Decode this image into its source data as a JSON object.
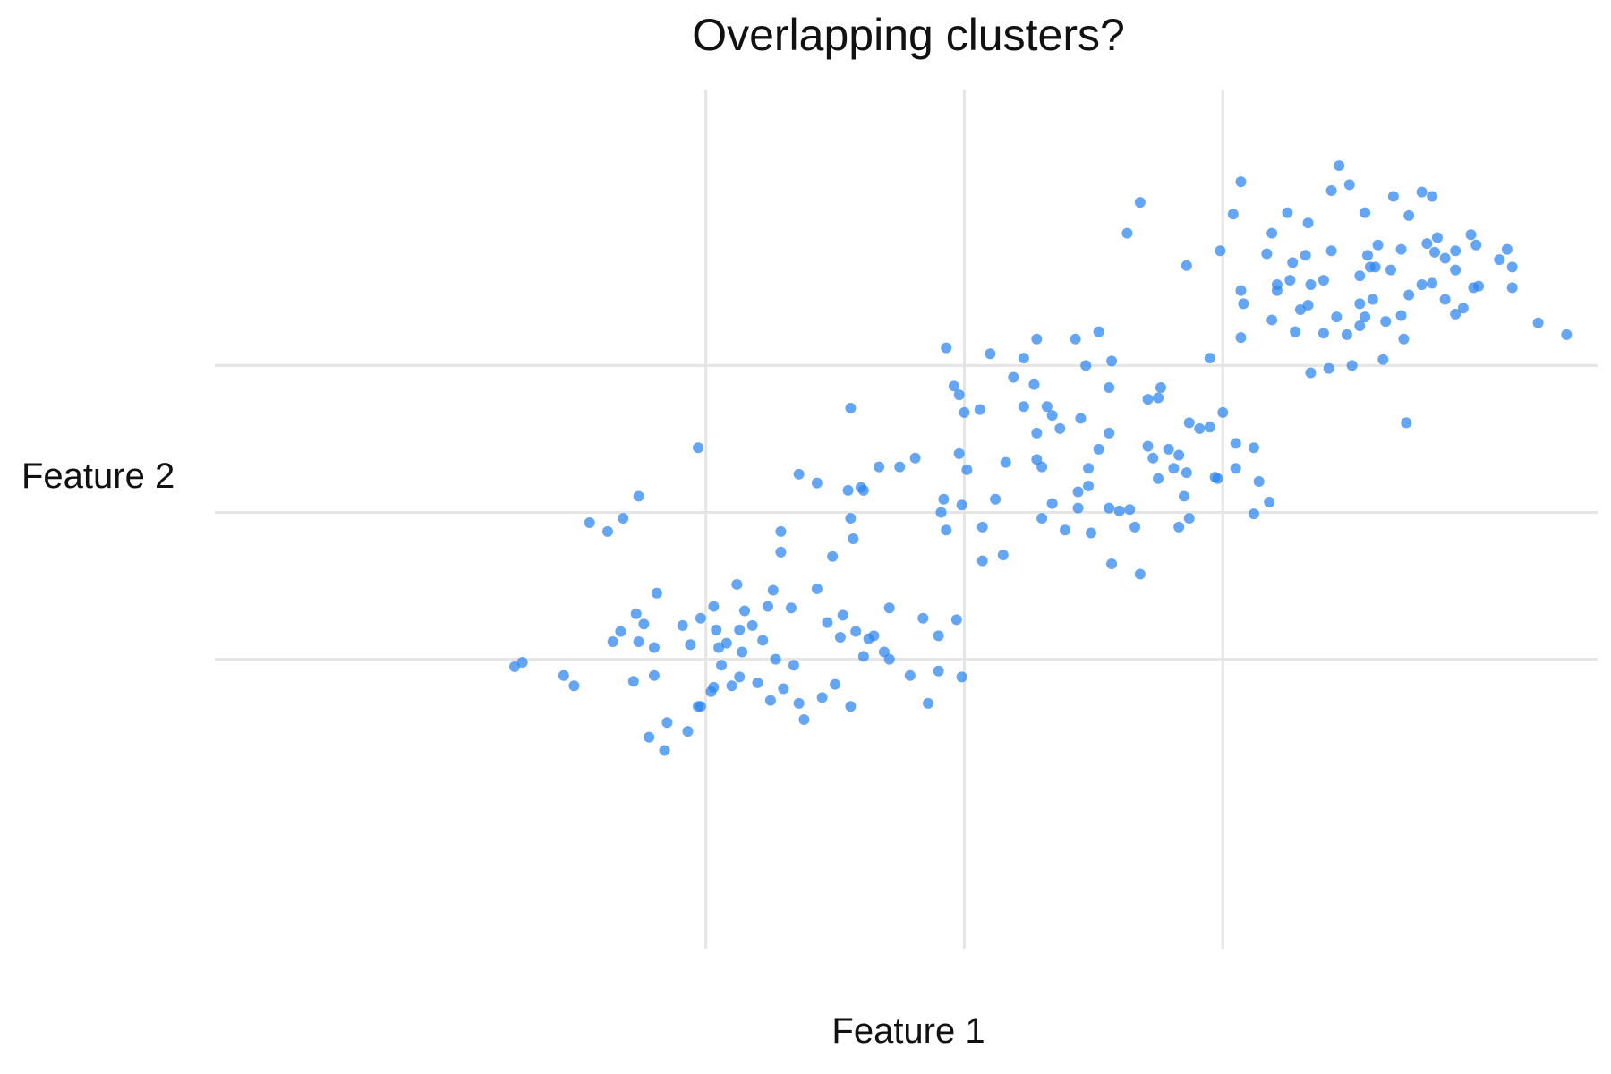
{
  "chart_data": {
    "type": "scatter",
    "title": "Overlapping clusters?",
    "xlabel": "Feature 1",
    "ylabel": "Feature 2",
    "xlim": [
      -1.9,
      3.45
    ],
    "ylim": [
      -2.0,
      4.0
    ],
    "grid": true,
    "x_gridlines": [
      0,
      1,
      2
    ],
    "y_gridlines": [
      0,
      1,
      2
    ],
    "legend": "none",
    "color": "#2a84f0",
    "points": [
      [
        -0.74,
        -0.05
      ],
      [
        -0.71,
        -0.02
      ],
      [
        -0.55,
        -0.11
      ],
      [
        -0.51,
        -0.18
      ],
      [
        -0.28,
        -0.15
      ],
      [
        -0.2,
        0.08
      ],
      [
        -0.2,
        -0.11
      ],
      [
        -0.15,
        -0.43
      ],
      [
        -0.07,
        -0.49
      ],
      [
        -0.02,
        -0.32
      ],
      [
        0.02,
        -0.22
      ],
      [
        0.03,
        -0.19
      ],
      [
        0.06,
        -0.04
      ],
      [
        0.1,
        -0.18
      ],
      [
        0.13,
        -0.12
      ],
      [
        0.2,
        -0.16
      ],
      [
        0.25,
        -0.28
      ],
      [
        0.3,
        -0.2
      ],
      [
        -0.19,
        0.45
      ],
      [
        -0.09,
        0.23
      ],
      [
        -0.26,
        0.12
      ],
      [
        -0.33,
        0.19
      ],
      [
        -0.36,
        0.12
      ],
      [
        -0.27,
        0.31
      ],
      [
        -0.24,
        0.24
      ],
      [
        -0.22,
        -0.53
      ],
      [
        -0.16,
        -0.62
      ],
      [
        -0.03,
        -0.32
      ],
      [
        0.04,
        0.2
      ],
      [
        0.05,
        0.08
      ],
      [
        0.08,
        0.11
      ],
      [
        0.13,
        0.2
      ],
      [
        0.14,
        0.05
      ],
      [
        0.18,
        0.23
      ],
      [
        0.22,
        0.13
      ],
      [
        0.27,
        0.0
      ],
      [
        0.34,
        -0.04
      ],
      [
        0.36,
        -0.3
      ],
      [
        0.38,
        -0.41
      ],
      [
        0.45,
        -0.26
      ],
      [
        0.5,
        -0.17
      ],
      [
        0.52,
        0.15
      ],
      [
        0.56,
        -0.32
      ],
      [
        0.61,
        0.02
      ],
      [
        0.63,
        0.14
      ],
      [
        0.69,
        0.05
      ],
      [
        0.71,
        0.0
      ],
      [
        0.79,
        -0.11
      ],
      [
        0.86,
        -0.3
      ],
      [
        0.9,
        -0.08
      ],
      [
        0.97,
        0.27
      ],
      [
        0.99,
        -0.12
      ],
      [
        -0.02,
        0.28
      ],
      [
        0.03,
        0.36
      ],
      [
        -0.06,
        0.1
      ],
      [
        0.15,
        0.33
      ],
      [
        0.24,
        0.36
      ],
      [
        0.12,
        0.51
      ],
      [
        0.26,
        0.47
      ],
      [
        0.33,
        0.35
      ],
      [
        0.43,
        0.48
      ],
      [
        0.47,
        0.25
      ],
      [
        0.53,
        0.3
      ],
      [
        0.58,
        0.19
      ],
      [
        0.65,
        0.16
      ],
      [
        0.71,
        0.35
      ],
      [
        0.84,
        0.28
      ],
      [
        0.9,
        0.16
      ],
      [
        0.49,
        0.7
      ],
      [
        0.57,
        0.82
      ],
      [
        0.29,
        0.73
      ],
      [
        0.29,
        0.87
      ],
      [
        0.56,
        0.96
      ],
      [
        0.55,
        1.15
      ],
      [
        0.61,
        1.15
      ],
      [
        0.75,
        1.31
      ],
      [
        0.98,
        1.4
      ],
      [
        -0.03,
        1.44
      ],
      [
        -0.26,
        1.11
      ],
      [
        -0.32,
        0.96
      ],
      [
        -0.38,
        0.87
      ],
      [
        -0.45,
        0.93
      ],
      [
        0.56,
        1.71
      ],
      [
        0.36,
        1.26
      ],
      [
        0.91,
        1.0
      ],
      [
        0.99,
        1.05
      ],
      [
        1.16,
        1.34
      ],
      [
        1.28,
        1.36
      ],
      [
        1.23,
        1.72
      ],
      [
        1.37,
        1.57
      ],
      [
        1.34,
        1.66
      ],
      [
        1.45,
        1.64
      ],
      [
        1.52,
        1.43
      ],
      [
        1.48,
        1.3
      ],
      [
        1.44,
        1.14
      ],
      [
        1.73,
        1.37
      ],
      [
        1.81,
        1.3
      ],
      [
        1.86,
        1.27
      ],
      [
        1.97,
        1.24
      ],
      [
        1.98,
        1.23
      ],
      [
        2.05,
        1.3
      ],
      [
        2.12,
        1.44
      ],
      [
        1.91,
        1.57
      ],
      [
        1.87,
        1.61
      ],
      [
        2.0,
        1.68
      ],
      [
        2.05,
        1.47
      ],
      [
        1.76,
        1.85
      ],
      [
        1.71,
        1.77
      ],
      [
        1.56,
        1.85
      ],
      [
        1.57,
        2.03
      ],
      [
        1.95,
        2.05
      ],
      [
        1.52,
        2.23
      ],
      [
        1.47,
        2.0
      ],
      [
        1.43,
        2.18
      ],
      [
        1.28,
        2.18
      ],
      [
        1.23,
        2.05
      ],
      [
        2.07,
        2.19
      ],
      [
        1.27,
        1.87
      ],
      [
        1.32,
        1.72
      ],
      [
        1.79,
        1.43
      ],
      [
        1.95,
        1.58
      ],
      [
        1.3,
        0.96
      ],
      [
        1.07,
        0.67
      ],
      [
        1.15,
        0.71
      ],
      [
        1.34,
        1.06
      ],
      [
        1.44,
        1.03
      ],
      [
        1.75,
        1.23
      ],
      [
        1.66,
        0.9
      ],
      [
        1.48,
        1.18
      ],
      [
        0.92,
        1.09
      ],
      [
        1.56,
        1.03
      ],
      [
        0.81,
        1.37
      ],
      [
        0.6,
        1.17
      ],
      [
        0.43,
        1.2
      ],
      [
        0.67,
        1.31
      ],
      [
        1.0,
        1.68
      ],
      [
        0.96,
        1.86
      ],
      [
        0.98,
        1.8
      ],
      [
        1.06,
        1.7
      ],
      [
        0.93,
        2.12
      ],
      [
        1.1,
        2.08
      ],
      [
        1.19,
        1.92
      ],
      [
        1.28,
        1.54
      ],
      [
        1.6,
        1.01
      ],
      [
        1.39,
        0.88
      ],
      [
        1.49,
        0.86
      ],
      [
        1.57,
        0.65
      ],
      [
        1.83,
        1.39
      ],
      [
        1.83,
        0.9
      ],
      [
        1.87,
        0.96
      ],
      [
        1.07,
        0.9
      ],
      [
        1.12,
        1.09
      ],
      [
        1.3,
        1.31
      ],
      [
        1.85,
        1.11
      ],
      [
        2.12,
        0.99
      ],
      [
        2.18,
        1.07
      ],
      [
        2.14,
        1.21
      ],
      [
        1.68,
        0.58
      ],
      [
        1.64,
        1.02
      ],
      [
        1.75,
        1.78
      ],
      [
        1.56,
        1.54
      ],
      [
        1.01,
        1.29
      ],
      [
        0.93,
        0.88
      ],
      [
        1.71,
        1.45
      ],
      [
        2.21,
        2.55
      ],
      [
        2.28,
        2.23
      ],
      [
        2.3,
        2.38
      ],
      [
        2.34,
        2.55
      ],
      [
        2.39,
        2.58
      ],
      [
        2.42,
        2.78
      ],
      [
        2.6,
        2.82
      ],
      [
        2.65,
        2.65
      ],
      [
        2.58,
        2.45
      ],
      [
        2.53,
        2.42
      ],
      [
        2.72,
        2.48
      ],
      [
        2.77,
        2.55
      ],
      [
        2.86,
        2.45
      ],
      [
        2.9,
        2.35
      ],
      [
        2.93,
        2.39
      ],
      [
        2.99,
        2.54
      ],
      [
        2.9,
        2.65
      ],
      [
        2.86,
        2.73
      ],
      [
        2.79,
        2.83
      ],
      [
        2.72,
        3.02
      ],
      [
        2.66,
        3.15
      ],
      [
        2.77,
        3.18
      ],
      [
        2.98,
        2.82
      ],
      [
        3.07,
        2.72
      ],
      [
        3.12,
        2.53
      ],
      [
        3.22,
        2.29
      ],
      [
        2.55,
        2.33
      ],
      [
        2.44,
        2.33
      ],
      [
        2.33,
        2.41
      ],
      [
        2.21,
        2.51
      ],
      [
        2.04,
        3.03
      ],
      [
        1.86,
        2.68
      ],
      [
        1.63,
        2.9
      ],
      [
        1.68,
        3.11
      ],
      [
        1.99,
        2.78
      ],
      [
        2.33,
        2.97
      ],
      [
        2.42,
        3.19
      ],
      [
        3.12,
        2.67
      ],
      [
        3.1,
        2.79
      ],
      [
        2.07,
        3.25
      ],
      [
        2.53,
        2.61
      ],
      [
        2.63,
        2.3
      ],
      [
        3.33,
        2.21
      ],
      [
        2.81,
        3.15
      ],
      [
        2.55,
        3.04
      ],
      [
        2.7,
        2.18
      ],
      [
        2.48,
        2.21
      ],
      [
        2.34,
        1.95
      ],
      [
        2.41,
        1.98
      ],
      [
        2.71,
        1.61
      ],
      [
        2.81,
        2.56
      ],
      [
        2.96,
        2.89
      ],
      [
        2.82,
        2.77
      ],
      [
        2.59,
        2.67
      ],
      [
        2.32,
        2.75
      ],
      [
        2.9,
        2.78
      ],
      [
        2.5,
        2.0
      ],
      [
        2.69,
        2.34
      ],
      [
        2.57,
        2.67
      ],
      [
        2.26,
        2.58
      ],
      [
        2.17,
        2.76
      ],
      [
        2.27,
        2.7
      ],
      [
        2.08,
        2.42
      ],
      [
        2.56,
        2.75
      ],
      [
        2.39,
        2.22
      ],
      [
        2.97,
        2.53
      ],
      [
        2.69,
        2.79
      ],
      [
        2.53,
        2.27
      ],
      [
        2.62,
        2.04
      ],
      [
        2.07,
        2.51
      ],
      [
        2.19,
        2.31
      ],
      [
        2.83,
        2.87
      ],
      [
        2.49,
        3.23
      ],
      [
        2.45,
        3.36
      ],
      [
        2.19,
        2.9
      ],
      [
        2.25,
        3.04
      ]
    ]
  }
}
